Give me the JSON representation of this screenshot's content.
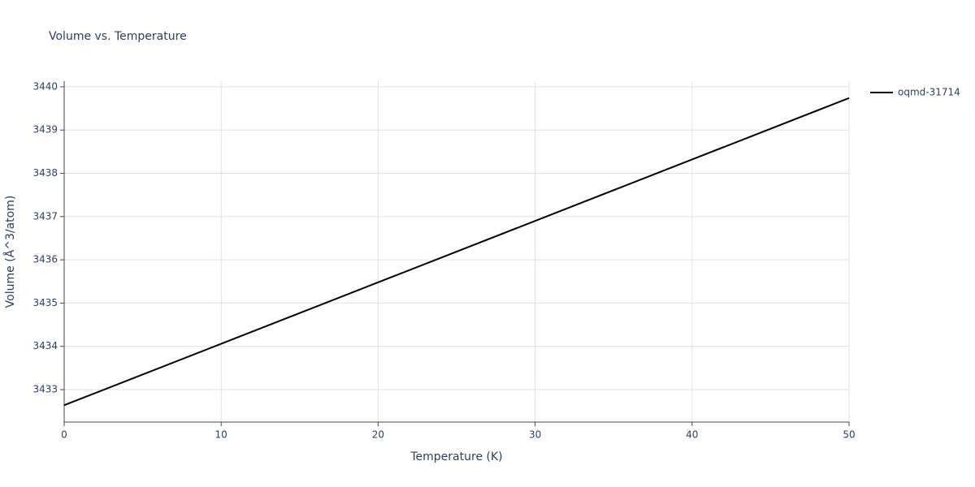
{
  "chart_data": {
    "type": "line",
    "title": "Volume vs. Temperature",
    "x_label": "Temperature (K)",
    "y_label": "Volume (Å^3/atom)",
    "x": [
      0,
      10,
      20,
      30,
      40,
      50
    ],
    "series": [
      {
        "name": "oqmd-31714",
        "color": "#000000",
        "values": [
          3432.64,
          3434.06,
          3435.48,
          3436.9,
          3438.32,
          3439.74
        ]
      }
    ],
    "xlim": [
      0,
      50
    ],
    "xticks": [
      0,
      10,
      20,
      30,
      40,
      50
    ],
    "ylim": [
      3432.25,
      3440.13
    ],
    "yticks": [
      3433,
      3434,
      3435,
      3436,
      3437,
      3438,
      3439,
      3440
    ],
    "grid": true,
    "legend": "right"
  }
}
